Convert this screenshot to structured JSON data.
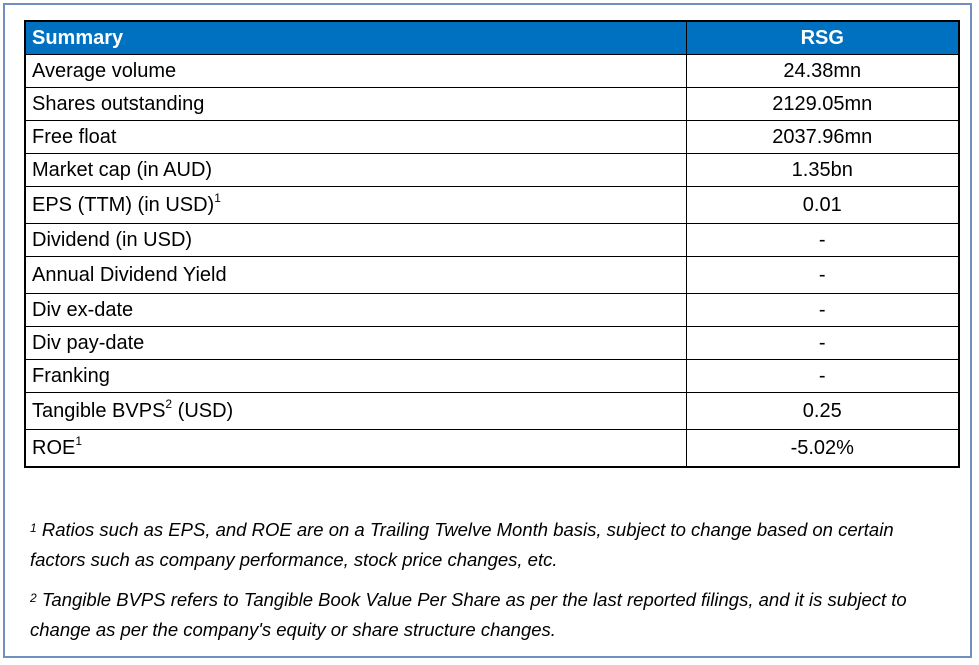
{
  "table": {
    "header": {
      "label": "Summary",
      "value": "RSG"
    },
    "rows": [
      {
        "label": "Average volume",
        "sup": "",
        "suffix": "",
        "value": "24.38mn"
      },
      {
        "label": "Shares outstanding",
        "sup": "",
        "suffix": "",
        "value": "2129.05mn"
      },
      {
        "label": "Free float",
        "sup": "",
        "suffix": "",
        "value": "2037.96mn"
      },
      {
        "label": "Market cap (in AUD)",
        "sup": "",
        "suffix": "",
        "value": "1.35bn"
      },
      {
        "label": "EPS (TTM) (in USD)",
        "sup": "1",
        "suffix": "",
        "value": "0.01"
      },
      {
        "label": "Dividend (in USD)",
        "sup": "",
        "suffix": "",
        "value": "-"
      },
      {
        "label": "Annual Dividend Yield",
        "sup": "",
        "suffix": "",
        "value": "-"
      },
      {
        "label": "Div ex-date",
        "sup": "",
        "suffix": "",
        "value": "-"
      },
      {
        "label": "Div pay-date",
        "sup": "",
        "suffix": "",
        "value": "-"
      },
      {
        "label": "Franking",
        "sup": "",
        "suffix": "",
        "value": "-"
      },
      {
        "label": "Tangible BVPS",
        "sup": "2",
        "suffix": " (USD)",
        "value": "0.25"
      },
      {
        "label": "ROE",
        "sup": "1",
        "suffix": "",
        "value": "-5.02%"
      }
    ]
  },
  "footnotes": [
    {
      "marker": "1",
      "text": "Ratios such as EPS, and ROE are on a Trailing Twelve Month basis, subject to change based on certain factors such as company performance, stock price changes, etc."
    },
    {
      "marker": "2",
      "text": "Tangible BVPS refers to Tangible Book Value Per Share as per the last reported filings, and it is subject to change as per the company's equity or share structure changes."
    }
  ],
  "colors": {
    "header_bg": "#0070c0",
    "frame_border": "#6f8fc2"
  }
}
